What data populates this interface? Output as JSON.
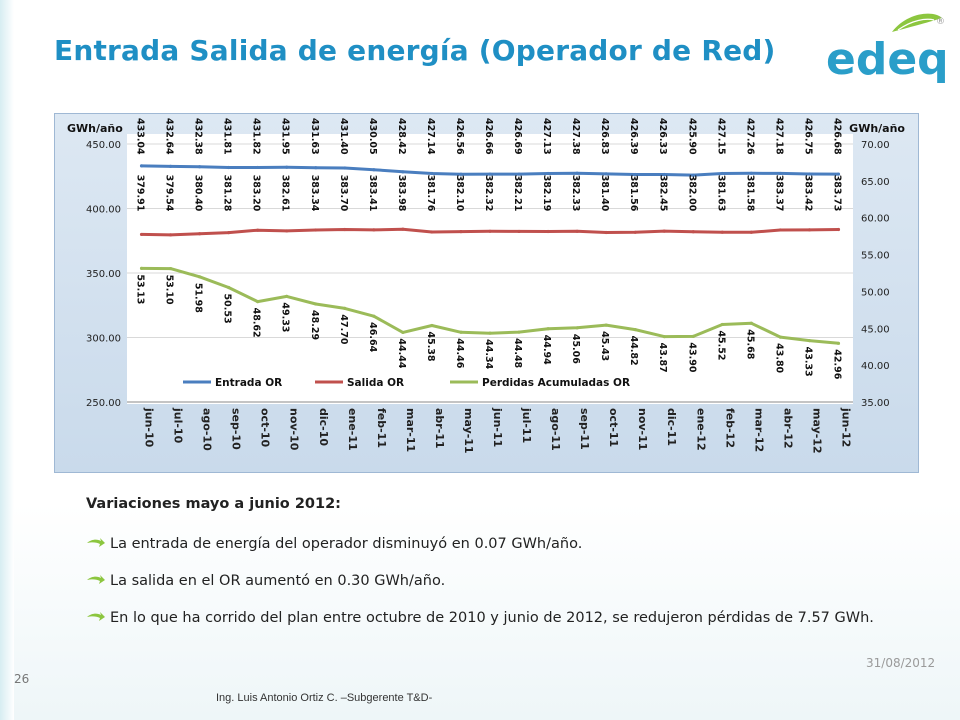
{
  "slide": {
    "title": "Entrada Salida de energía (Operador de Red)",
    "logo_text": "edeq",
    "logo_mark": "®",
    "date": "31/08/2012",
    "page_number": "26",
    "footer": "Ing. Luis Antonio Ortiz C. –Subgerente T&D-",
    "colors": {
      "title": "#1f8fc4",
      "logo_green": "#8cc63f",
      "logo_blue": "#2a9ec9"
    }
  },
  "notes": {
    "header": "Variaciones mayo a junio 2012:",
    "bullets": [
      "La entrada de energía del operador  disminuyó en 0.07 GWh/año.",
      "La salida en el OR aumentó en 0.30 GWh/año.",
      "En lo que ha corrido del plan entre octubre de 2010 y junio de 2012, se redujeron pérdidas de 7.57 GWh."
    ],
    "bullet_icon": "green-arrow-icon"
  },
  "chart_data": {
    "type": "line",
    "title": "",
    "ylabel_left": "GWh/año",
    "ylabel_right": "GWh/año",
    "ylim_left": [
      250,
      450
    ],
    "yticks_left": [
      "450.00",
      "400.00",
      "350.00",
      "300.00",
      "250.00"
    ],
    "ylim_right": [
      35,
      70
    ],
    "yticks_right": [
      "70.00",
      "65.00",
      "60.00",
      "55.00",
      "50.00",
      "45.00",
      "40.00",
      "35.00"
    ],
    "categories": [
      "jun-10",
      "jul-10",
      "ago-10",
      "sep-10",
      "oct-10",
      "nov-10",
      "dic-10",
      "ene-11",
      "feb-11",
      "mar-11",
      "abr-11",
      "may-11",
      "jun-11",
      "jul-11",
      "ago-11",
      "sep-11",
      "oct-11",
      "nov-11",
      "dic-11",
      "ene-12",
      "feb-12",
      "mar-12",
      "abr-12",
      "may-12",
      "jun-12"
    ],
    "series": [
      {
        "name": "Entrada OR",
        "axis": "left",
        "color": "#4a7ebf",
        "values": [
          433.04,
          432.64,
          432.38,
          431.81,
          431.82,
          431.95,
          431.63,
          431.4,
          430.05,
          428.42,
          427.14,
          426.56,
          426.66,
          426.69,
          427.13,
          427.38,
          426.83,
          426.39,
          426.33,
          425.9,
          427.15,
          427.26,
          427.18,
          426.75,
          426.68
        ],
        "labels": [
          "433.04",
          "432.64",
          "432.38",
          "431.81",
          "431.82",
          "431.95",
          "431.63",
          "431.40",
          "430.05",
          "428.42",
          "427.14",
          "426.56",
          "426.66",
          "426.69",
          "427.13",
          "427.38",
          "426.83",
          "426.39",
          "426.33",
          "425.90",
          "427.15",
          "427.26",
          "427.18",
          "426.75",
          "426.68"
        ]
      },
      {
        "name": "Salida OR",
        "axis": "left",
        "color": "#c0504d",
        "values": [
          379.91,
          379.54,
          380.4,
          381.28,
          383.2,
          382.61,
          383.34,
          383.7,
          383.41,
          383.98,
          381.76,
          382.1,
          382.32,
          382.21,
          382.19,
          382.33,
          381.4,
          381.56,
          382.45,
          382.0,
          381.63,
          381.58,
          383.37,
          383.42,
          383.73
        ],
        "labels": [
          "379.91",
          "379.54",
          "380.40",
          "381.28",
          "383.20",
          "382.61",
          "383.34",
          "383.70",
          "383.41",
          "383.98",
          "381.76",
          "382.10",
          "382.32",
          "382.21",
          "382.19",
          "382.33",
          "381.40",
          "381.56",
          "382.45",
          "382.00",
          "381.63",
          "381.58",
          "383.37",
          "383.42",
          "383.73"
        ]
      },
      {
        "name": "Perdidas Acumuladas OR",
        "axis": "right",
        "color": "#9bbb59",
        "values": [
          53.13,
          53.1,
          51.98,
          50.53,
          48.62,
          49.33,
          48.29,
          47.7,
          46.64,
          44.44,
          45.38,
          44.46,
          44.34,
          44.48,
          44.94,
          45.06,
          45.43,
          44.82,
          43.87,
          43.9,
          45.52,
          45.68,
          43.8,
          43.33,
          42.96
        ],
        "labels": [
          "53.13",
          "53.10",
          "51.98",
          "50.53",
          "48.62",
          "49.33",
          "48.29",
          "47.70",
          "46.64",
          "44.44",
          "45.38",
          "44.46",
          "44.34",
          "44.48",
          "44.94",
          "45.06",
          "45.43",
          "44.82",
          "43.87",
          "43.90",
          "45.52",
          "45.68",
          "43.80",
          "43.33",
          "42.96"
        ]
      }
    ],
    "legend_position": "bottom",
    "grid": "horizontal"
  }
}
